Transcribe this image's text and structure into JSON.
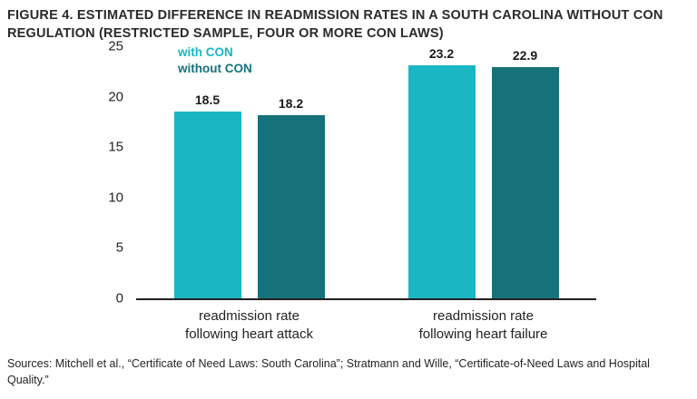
{
  "title": "FIGURE 4. ESTIMATED DIFFERENCE IN READMISSION RATES IN A SOUTH CAROLINA WITHOUT CON REGULATION (RESTRICTED SAMPLE, FOUR OR MORE CON LAWS)",
  "source_note": "Sources: Mitchell et al., “Certificate of Need Laws: South Carolina”; Stratmann and Wille, “Certificate-of-Need Laws and Hospital Quality.”",
  "colors": {
    "with_con": "#1ab6c3",
    "without_con": "#15727b",
    "axis": "#231f20",
    "value_label": "#1a1a1a"
  },
  "chart_data": {
    "type": "bar",
    "categories": [
      "readmission rate\nfollowing heart attack",
      "readmission rate\nfollowing heart failure"
    ],
    "series": [
      {
        "name": "with CON",
        "values": [
          18.5,
          23.2
        ],
        "color": "#1ab6c3"
      },
      {
        "name": "without CON",
        "values": [
          18.2,
          22.9
        ],
        "color": "#15727b"
      }
    ],
    "ylabel": "",
    "xlabel": "",
    "ylim": [
      0,
      25
    ],
    "yticks": [
      0,
      5,
      10,
      15,
      20,
      25
    ],
    "grid": false,
    "legend_position": "top-left",
    "value_label_decimals": 1
  }
}
